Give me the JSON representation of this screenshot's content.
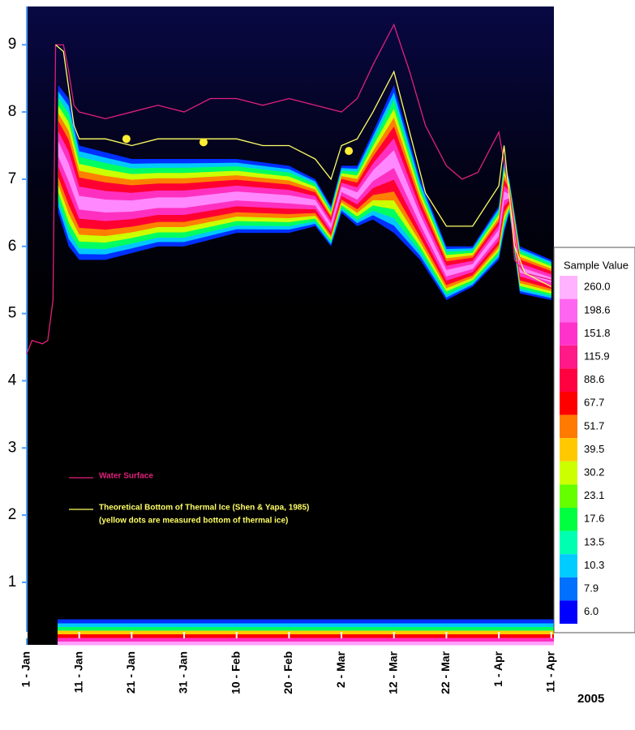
{
  "chart_data": {
    "type": "echogram",
    "year_label": "2005",
    "xlim": [
      0,
      100.5
    ],
    "ylim": [
      0.07,
      9.57
    ],
    "xticks": [
      {
        "value": 0,
        "label": "1 - Jan"
      },
      {
        "value": 10,
        "label": "11 - Jan"
      },
      {
        "value": 20,
        "label": "21 - Jan"
      },
      {
        "value": 30,
        "label": "31 - Jan"
      },
      {
        "value": 40,
        "label": "10 - Feb"
      },
      {
        "value": 50,
        "label": "20 - Feb"
      },
      {
        "value": 60,
        "label": "2 - Mar"
      },
      {
        "value": 70,
        "label": "12 - Mar"
      },
      {
        "value": 80,
        "label": "22 - Mar"
      },
      {
        "value": 90,
        "label": "1 - Apr"
      },
      {
        "value": 100,
        "label": "11 - Apr"
      }
    ],
    "yticks": [
      1,
      2,
      3,
      4,
      5,
      6,
      7,
      8,
      9
    ],
    "series": [
      {
        "name": "Water Surface",
        "color": "#e0207a",
        "x": [
          0,
          1,
          3,
          4,
          5,
          5.5,
          7,
          8,
          9,
          10,
          15,
          20,
          25,
          30,
          35,
          40,
          45,
          50,
          55,
          60,
          63,
          66,
          70,
          73,
          76,
          80,
          83,
          86,
          90,
          92,
          93,
          95,
          100
        ],
        "values": [
          4.4,
          4.6,
          4.55,
          4.6,
          5.2,
          9.0,
          9.0,
          8.6,
          8.1,
          8.0,
          7.9,
          8.0,
          8.1,
          8.0,
          8.2,
          8.2,
          8.1,
          8.2,
          8.1,
          8.0,
          8.2,
          8.7,
          9.3,
          8.6,
          7.8,
          7.2,
          7.0,
          7.1,
          7.7,
          6.8,
          5.8,
          5.6,
          5.5
        ]
      },
      {
        "name": "Theoretical Bottom of Thermal Ice (Shen & Yapa, 1985)",
        "color": "#ffff66",
        "x": [
          5.5,
          7,
          9,
          10,
          15,
          20,
          25,
          30,
          35,
          40,
          45,
          50,
          55,
          58,
          60,
          63,
          66,
          70,
          73,
          76,
          80,
          85,
          90,
          91,
          93,
          95,
          100
        ],
        "values": [
          9.0,
          8.9,
          7.8,
          7.6,
          7.6,
          7.5,
          7.6,
          7.6,
          7.6,
          7.6,
          7.5,
          7.5,
          7.3,
          7.0,
          7.5,
          7.6,
          8.0,
          8.6,
          7.7,
          6.8,
          6.3,
          6.3,
          6.9,
          7.5,
          6.0,
          5.6,
          5.4
        ]
      }
    ],
    "dots_note": "(yellow dots are measured bottom of thermal ice)",
    "dots": {
      "color": "#ffee33",
      "x": [
        19,
        33.7,
        61.4
      ],
      "values": [
        7.6,
        7.55,
        7.42
      ]
    },
    "echo_band": {
      "x": [
        6,
        8,
        10,
        15,
        20,
        25,
        30,
        40,
        50,
        55,
        58,
        60,
        63,
        66,
        70,
        75,
        80,
        85,
        90,
        91,
        92,
        94,
        100
      ],
      "upper": [
        8.4,
        8.2,
        7.5,
        7.4,
        7.3,
        7.3,
        7.3,
        7.3,
        7.2,
        7.0,
        6.6,
        7.2,
        7.2,
        7.7,
        8.4,
        7.0,
        6.0,
        6.0,
        6.6,
        7.3,
        7.0,
        6.0,
        5.8
      ],
      "lower": [
        6.5,
        6.0,
        5.8,
        5.8,
        5.9,
        6.0,
        6.0,
        6.2,
        6.2,
        6.3,
        6.0,
        6.5,
        6.3,
        6.4,
        6.2,
        5.8,
        5.2,
        5.4,
        5.8,
        6.2,
        6.5,
        5.3,
        5.2
      ]
    },
    "bottom_band": [
      0.07,
      0.45
    ],
    "colorbar": {
      "title": "Sample Value",
      "levels": [
        {
          "value": 260,
          "label": "260.0"
        },
        {
          "value": 198.6,
          "label": "198.6"
        },
        {
          "value": 151.8,
          "label": "151.8"
        },
        {
          "value": 115.9,
          "label": "115.9"
        },
        {
          "value": 88.6,
          "label": "88.6"
        },
        {
          "value": 67.7,
          "label": "67.7"
        },
        {
          "value": 51.7,
          "label": "51.7"
        },
        {
          "value": 39.5,
          "label": "39.5"
        },
        {
          "value": 30.2,
          "label": "30.2"
        },
        {
          "value": 23.1,
          "label": "23.1"
        },
        {
          "value": 17.6,
          "label": "17.6"
        },
        {
          "value": 13.5,
          "label": "13.5"
        },
        {
          "value": 10.3,
          "label": "10.3"
        },
        {
          "value": 7.9,
          "label": "7.9"
        },
        {
          "value": 6.0,
          "label": "6.0"
        }
      ],
      "colors": [
        "#ffb3ff",
        "#ff66f0",
        "#ff33cc",
        "#ff1a88",
        "#ff0040",
        "#ff0000",
        "#ff7a00",
        "#ffc800",
        "#ccff00",
        "#66ff00",
        "#00ff40",
        "#00ffb0",
        "#00ccff",
        "#0070ff",
        "#0000ff"
      ]
    }
  }
}
